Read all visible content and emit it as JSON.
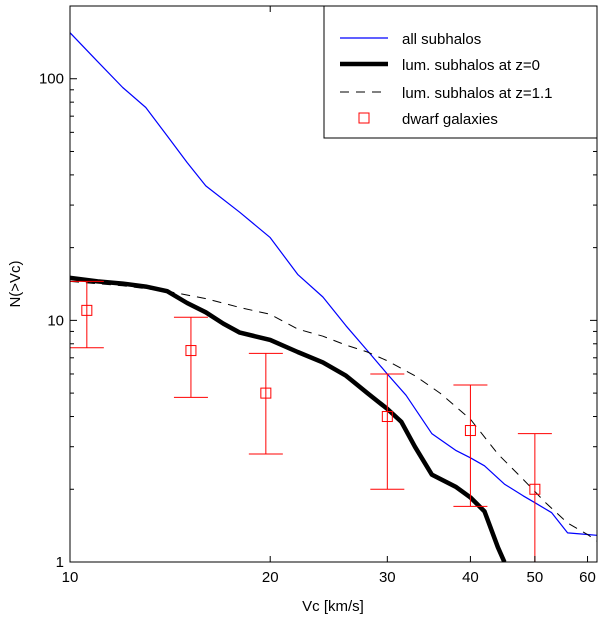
{
  "chart_data": {
    "type": "line",
    "xlabel": "Vc [km/s]",
    "ylabel": "N(>Vc)",
    "xscale": "log",
    "yscale": "log",
    "xlim": [
      10,
      62
    ],
    "ylim": [
      1,
      200
    ],
    "grid": false,
    "legend_position": "top-right",
    "x_ticks": [
      10,
      20,
      30,
      40,
      50,
      60
    ],
    "x_tick_labels": [
      "10",
      "20",
      "30",
      "40",
      "50",
      "60"
    ],
    "y_ticks": [
      1,
      10,
      100
    ],
    "y_tick_labels": [
      "1",
      "10",
      "100"
    ],
    "series": [
      {
        "name": "all subhalos",
        "style": "thin-solid",
        "color": "#0000ff",
        "points": [
          [
            10,
            155
          ],
          [
            11,
            118
          ],
          [
            12,
            92
          ],
          [
            13,
            76
          ],
          [
            14,
            58
          ],
          [
            15,
            45
          ],
          [
            16,
            36
          ],
          [
            18,
            28
          ],
          [
            20,
            22
          ],
          [
            22,
            15.5
          ],
          [
            24,
            12.5
          ],
          [
            26,
            9.5
          ],
          [
            28,
            7.5
          ],
          [
            30,
            6.0
          ],
          [
            32,
            4.9
          ],
          [
            35,
            3.4
          ],
          [
            38,
            2.9
          ],
          [
            40,
            2.7
          ],
          [
            42,
            2.5
          ],
          [
            45,
            2.1
          ],
          [
            48,
            1.88
          ],
          [
            50,
            1.76
          ],
          [
            53,
            1.6
          ],
          [
            56,
            1.32
          ],
          [
            60,
            1.3
          ],
          [
            62,
            1.29
          ]
        ]
      },
      {
        "name": "lum. subhalos at z=0",
        "style": "thick-solid",
        "color": "#000000",
        "points": [
          [
            10,
            15
          ],
          [
            11,
            14.5
          ],
          [
            12,
            14.2
          ],
          [
            13,
            13.8
          ],
          [
            14,
            13.2
          ],
          [
            15,
            11.8
          ],
          [
            16,
            10.8
          ],
          [
            17,
            9.7
          ],
          [
            18,
            8.9
          ],
          [
            20,
            8.3
          ],
          [
            22,
            7.4
          ],
          [
            24,
            6.7
          ],
          [
            26,
            5.9
          ],
          [
            28,
            5.0
          ],
          [
            30,
            4.3
          ],
          [
            31.5,
            3.8
          ],
          [
            33,
            3.0
          ],
          [
            35,
            2.3
          ],
          [
            38,
            2.05
          ],
          [
            40,
            1.85
          ],
          [
            42,
            1.62
          ],
          [
            44,
            1.15
          ],
          [
            45,
            1.0
          ]
        ]
      },
      {
        "name": "lum. subhalos at z=1.1",
        "style": "dashed",
        "color": "#000000",
        "points": [
          [
            10,
            14.5
          ],
          [
            12,
            13.9
          ],
          [
            14,
            13.2
          ],
          [
            16,
            12.3
          ],
          [
            18,
            11.3
          ],
          [
            20,
            10.6
          ],
          [
            22,
            9.2
          ],
          [
            24,
            8.6
          ],
          [
            26,
            7.9
          ],
          [
            28,
            7.4
          ],
          [
            30,
            6.8
          ],
          [
            33,
            5.9
          ],
          [
            36,
            5.0
          ],
          [
            40,
            3.9
          ],
          [
            44,
            2.8
          ],
          [
            48,
            2.2
          ],
          [
            52,
            1.75
          ],
          [
            56,
            1.45
          ],
          [
            60,
            1.3
          ],
          [
            62,
            1.22
          ]
        ]
      },
      {
        "name": "dwarf galaxies",
        "style": "square-markers-with-errorbars",
        "color": "#ff0000",
        "points": [
          {
            "x": 10.6,
            "y": 11,
            "ylow": 7.7,
            "yhigh": 14.5
          },
          {
            "x": 15.2,
            "y": 7.5,
            "ylow": 4.8,
            "yhigh": 10.3
          },
          {
            "x": 19.7,
            "y": 5.0,
            "ylow": 2.8,
            "yhigh": 7.3
          },
          {
            "x": 30,
            "y": 4.0,
            "ylow": 2.0,
            "yhigh": 6.0
          },
          {
            "x": 40,
            "y": 3.5,
            "ylow": 1.7,
            "yhigh": 5.4
          },
          {
            "x": 50,
            "y": 2.0,
            "ylow": 1.0,
            "yhigh": 3.4
          }
        ]
      }
    ]
  }
}
